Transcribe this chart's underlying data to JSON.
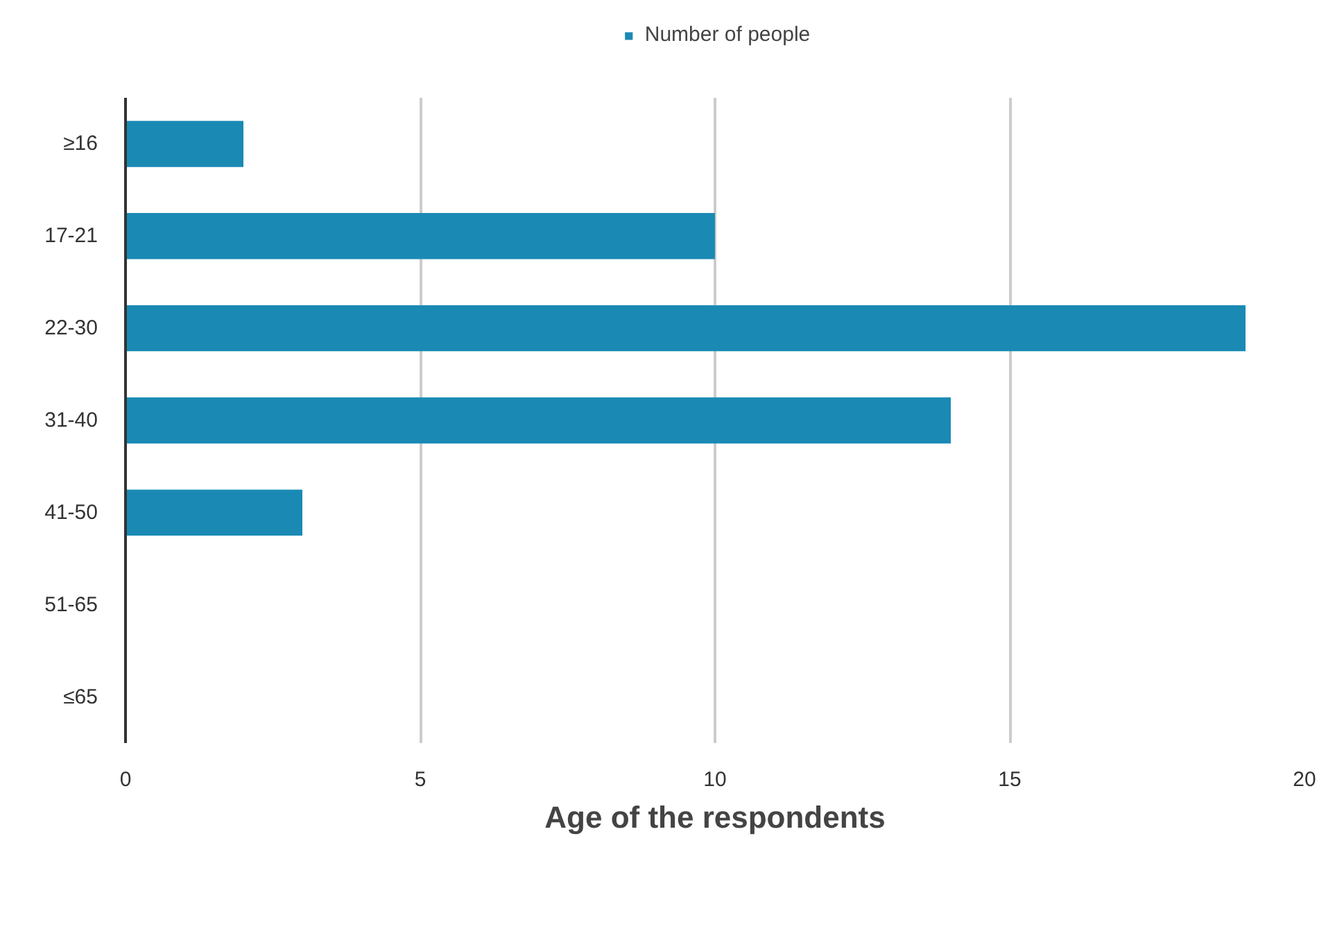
{
  "chart_data": {
    "type": "bar",
    "orientation": "horizontal",
    "title": "Age of the respondents",
    "categories": [
      "≥16",
      "17-21",
      "22-30",
      "31-40",
      "41-50",
      "51-65",
      "≤65"
    ],
    "series": [
      {
        "name": "Number of people",
        "color": "#1a8ab4",
        "values": [
          2,
          10,
          19,
          14,
          3,
          0,
          0
        ]
      }
    ],
    "xlim": [
      0,
      20
    ],
    "xticks": [
      0,
      5,
      10,
      15,
      20
    ],
    "grid": "x",
    "legend": "top"
  }
}
